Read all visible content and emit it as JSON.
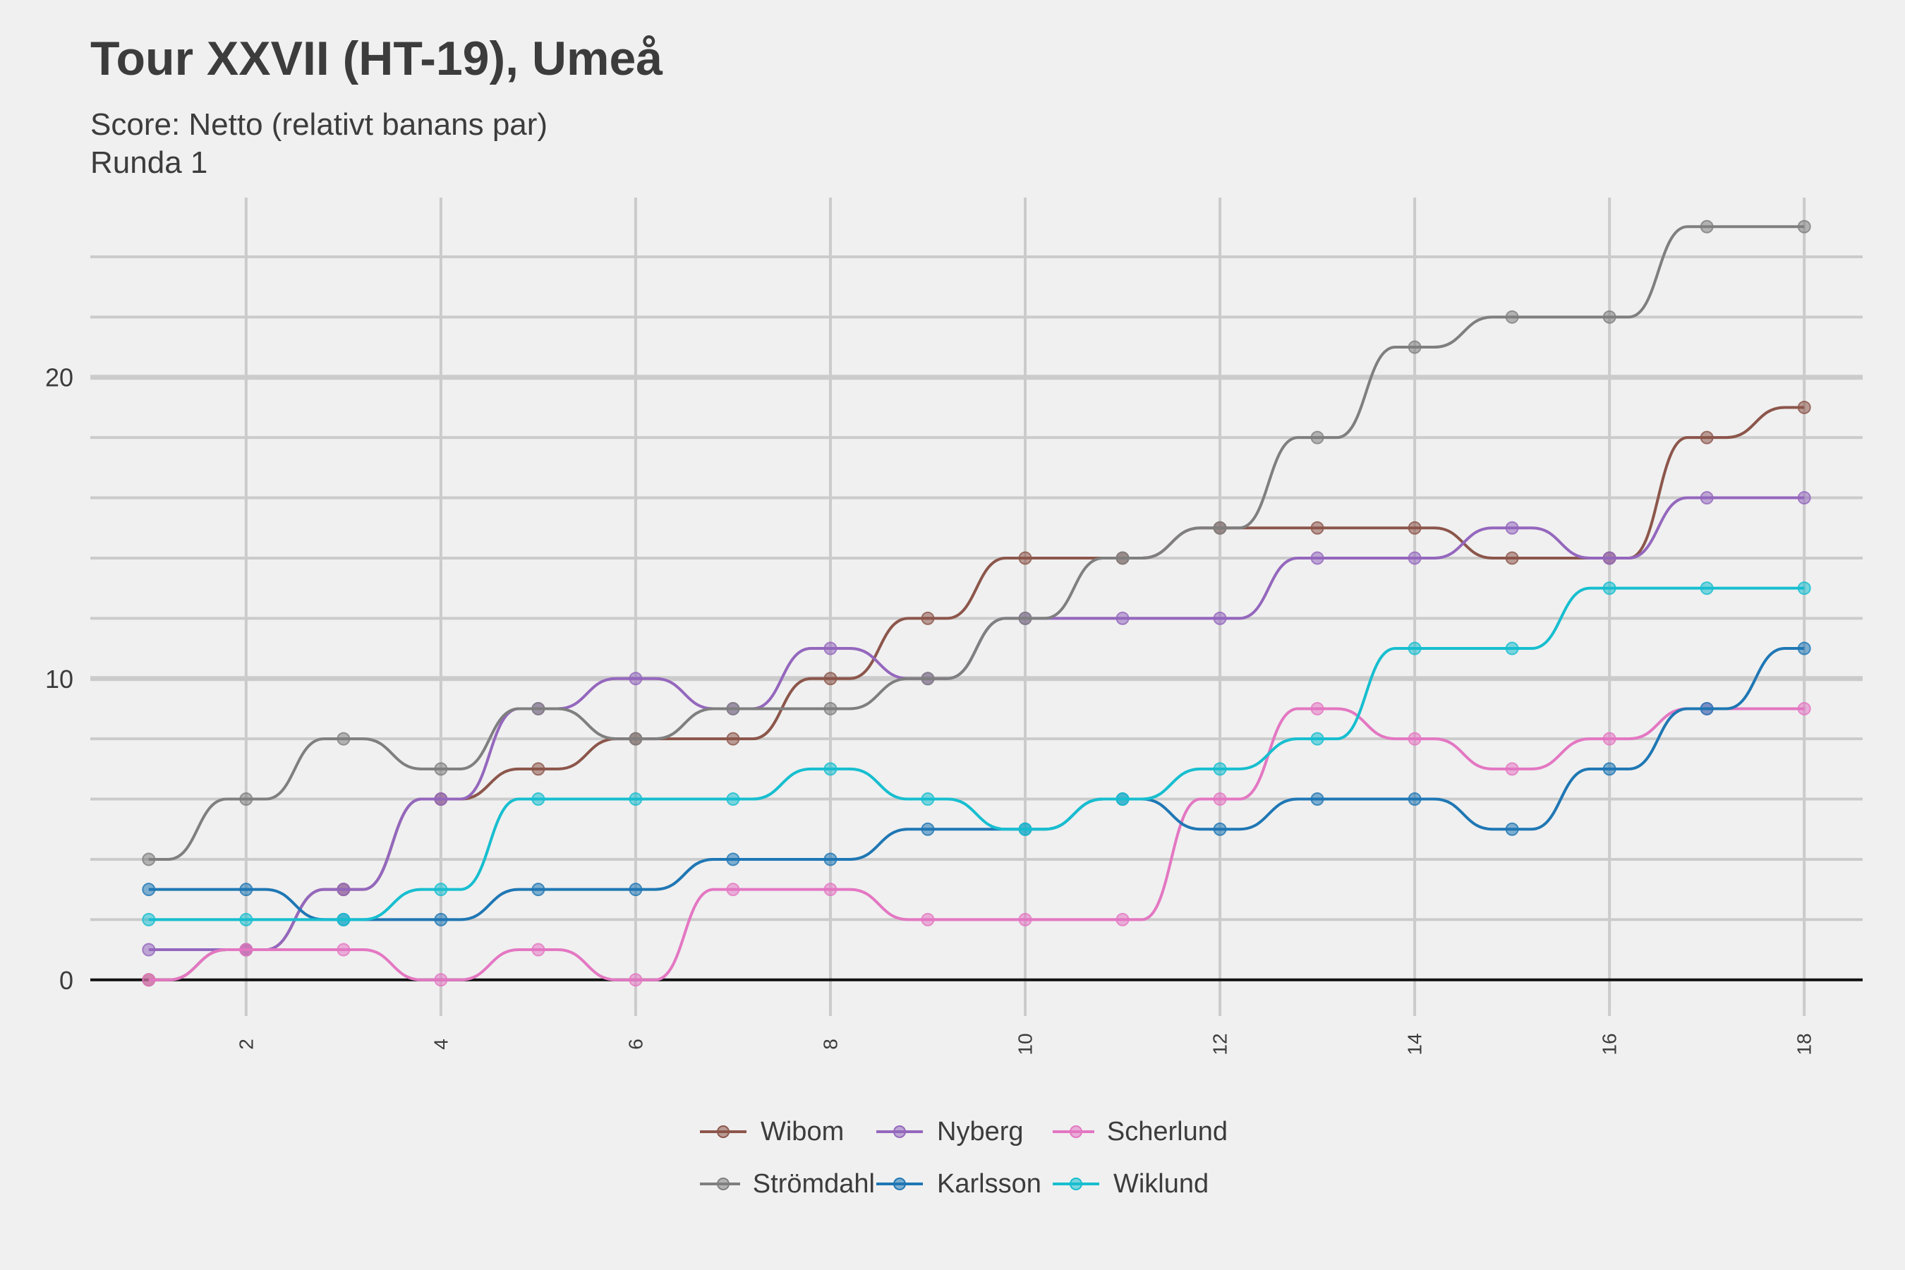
{
  "title": "Tour XXVII (HT-19), Umeå",
  "subtitle_lines": [
    "Score: Netto (relativt banans par)",
    "Runda 1"
  ],
  "chart_data": {
    "type": "line",
    "title": "Tour XXVII (HT-19), Umeå",
    "subtitle": "Score: Netto (relativt banans par) / Runda 1",
    "xlabel": "",
    "ylabel": "",
    "x": [
      1,
      2,
      3,
      4,
      5,
      6,
      7,
      8,
      9,
      10,
      11,
      12,
      13,
      14,
      15,
      16,
      17,
      18
    ],
    "xlim": [
      0.4,
      18.6
    ],
    "ylim": [
      -1.2,
      26.2
    ],
    "x_ticks": [
      2,
      4,
      6,
      8,
      10,
      12,
      14,
      16,
      18
    ],
    "y_ticks": [
      0,
      10,
      20
    ],
    "grid": true,
    "legend_position": "bottom",
    "interpolation": "smooth-step",
    "series": [
      {
        "name": "Wibom",
        "color": "#8c564b",
        "values": [
          0,
          1,
          3,
          6,
          7,
          8,
          8,
          10,
          12,
          14,
          14,
          15,
          15,
          15,
          14,
          14,
          18,
          19
        ]
      },
      {
        "name": "Nyberg",
        "color": "#9467bd",
        "values": [
          1,
          1,
          3,
          6,
          9,
          10,
          9,
          11,
          10,
          12,
          12,
          12,
          14,
          14,
          15,
          14,
          16,
          16
        ]
      },
      {
        "name": "Scherlund",
        "color": "#e377c2",
        "values": [
          0,
          1,
          1,
          0,
          1,
          0,
          3,
          3,
          2,
          2,
          2,
          6,
          9,
          8,
          7,
          8,
          9,
          9
        ]
      },
      {
        "name": "Strömdahl",
        "color": "#7f7f7f",
        "values": [
          4,
          6,
          8,
          7,
          9,
          8,
          9,
          9,
          10,
          12,
          14,
          15,
          18,
          21,
          22,
          22,
          25,
          25
        ]
      },
      {
        "name": "Karlsson",
        "color": "#1f77b4",
        "values": [
          3,
          3,
          2,
          2,
          3,
          3,
          4,
          4,
          5,
          5,
          6,
          5,
          6,
          6,
          5,
          7,
          9,
          11
        ]
      },
      {
        "name": "Wiklund",
        "color": "#17becf",
        "values": [
          2,
          2,
          2,
          3,
          6,
          6,
          6,
          7,
          6,
          5,
          6,
          7,
          8,
          11,
          11,
          13,
          13,
          13
        ]
      }
    ]
  }
}
